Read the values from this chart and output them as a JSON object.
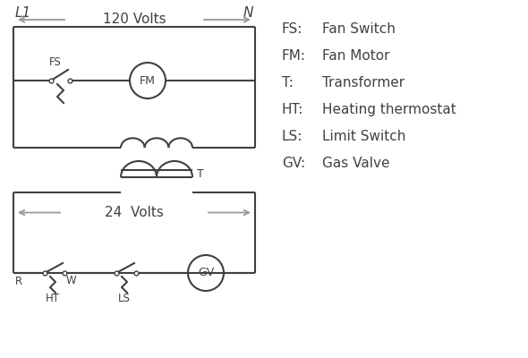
{
  "bg_color": "#ffffff",
  "line_color": "#404040",
  "gray_color": "#999999",
  "legend": [
    [
      "FS:",
      "Fan Switch"
    ],
    [
      "FM:",
      "Fan Motor"
    ],
    [
      "T:",
      "Transformer"
    ],
    [
      "HT:",
      "Heating thermostat"
    ],
    [
      "LS:",
      "Limit Switch"
    ],
    [
      "GV:",
      "Gas Valve"
    ]
  ],
  "volts120": "120 Volts",
  "volts24": "24  Volts",
  "L1": "L1",
  "N": "N",
  "label_fs": "FS",
  "label_fm": "FM",
  "label_t": "T",
  "label_ht": "HT",
  "label_ls": "LS",
  "label_gv": "GV",
  "label_r": "R",
  "label_w": "W"
}
